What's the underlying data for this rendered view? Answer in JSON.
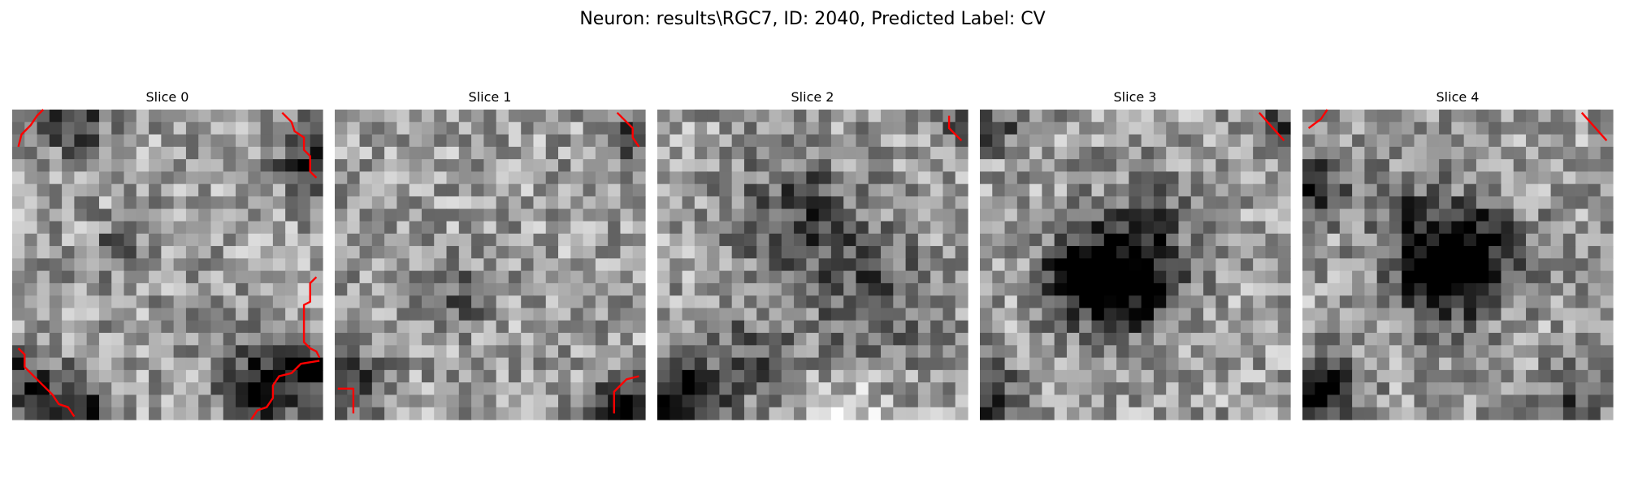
{
  "figure": {
    "title": "Neuron: results\\RGC7, ID: 2040, Predicted Label: CV"
  },
  "chart_data": {
    "type": "heatmap",
    "colormap": "gray",
    "contour_color": "#ff0000",
    "grid_size": [
      25,
      25
    ],
    "panels": [
      {
        "title": "Slice 0",
        "seed": 11,
        "blobs": [
          {
            "cx": 0.22,
            "cy": 0.96,
            "r": 0.07,
            "amp": -0.55
          },
          {
            "cx": 0.8,
            "cy": 0.9,
            "r": 0.09,
            "amp": -0.6
          },
          {
            "cx": 0.96,
            "cy": 0.84,
            "r": 0.06,
            "amp": -0.55
          },
          {
            "cx": 0.02,
            "cy": 0.88,
            "r": 0.09,
            "amp": -0.45
          },
          {
            "cx": 0.2,
            "cy": 0.04,
            "r": 0.07,
            "amp": -0.45
          },
          {
            "cx": 0.97,
            "cy": 0.16,
            "r": 0.08,
            "amp": -0.45
          },
          {
            "cx": 0.35,
            "cy": 0.45,
            "r": 0.06,
            "amp": -0.3
          }
        ]
      },
      {
        "title": "Slice 1",
        "seed": 23,
        "blobs": [
          {
            "cx": 0.03,
            "cy": 0.88,
            "r": 0.09,
            "amp": -0.45
          },
          {
            "cx": 0.92,
            "cy": 0.96,
            "r": 0.07,
            "amp": -0.6
          },
          {
            "cx": 0.97,
            "cy": 0.08,
            "r": 0.06,
            "amp": -0.4
          },
          {
            "cx": 0.4,
            "cy": 0.6,
            "r": 0.07,
            "amp": -0.25
          }
        ]
      },
      {
        "title": "Slice 2",
        "seed": 37,
        "blobs": [
          {
            "cx": 0.05,
            "cy": 0.95,
            "r": 0.1,
            "amp": -0.7
          },
          {
            "cx": 0.45,
            "cy": 0.35,
            "r": 0.14,
            "amp": -0.35
          },
          {
            "cx": 0.7,
            "cy": 0.6,
            "r": 0.14,
            "amp": -0.3
          },
          {
            "cx": 0.3,
            "cy": 0.8,
            "r": 0.1,
            "amp": -0.25
          },
          {
            "cx": 0.97,
            "cy": 0.05,
            "r": 0.05,
            "amp": -0.4
          },
          {
            "cx": 0.6,
            "cy": 0.98,
            "r": 0.08,
            "amp": 0.25
          }
        ]
      },
      {
        "title": "Slice 3",
        "seed": 41,
        "blobs": [
          {
            "cx": 0.45,
            "cy": 0.55,
            "r": 0.12,
            "amp": -0.75
          },
          {
            "cx": 0.3,
            "cy": 0.53,
            "r": 0.08,
            "amp": -0.45
          },
          {
            "cx": 0.02,
            "cy": 0.92,
            "r": 0.08,
            "amp": -0.45
          },
          {
            "cx": 0.05,
            "cy": 0.05,
            "r": 0.06,
            "amp": -0.35
          },
          {
            "cx": 0.95,
            "cy": 0.05,
            "r": 0.06,
            "amp": -0.35
          },
          {
            "cx": 0.55,
            "cy": 0.35,
            "r": 0.12,
            "amp": -0.2
          }
        ]
      },
      {
        "title": "Slice 4",
        "seed": 53,
        "blobs": [
          {
            "cx": 0.45,
            "cy": 0.52,
            "r": 0.11,
            "amp": -0.7
          },
          {
            "cx": 0.55,
            "cy": 0.45,
            "r": 0.12,
            "amp": -0.4
          },
          {
            "cx": 0.05,
            "cy": 0.92,
            "r": 0.09,
            "amp": -0.6
          },
          {
            "cx": 0.02,
            "cy": 0.25,
            "r": 0.08,
            "amp": -0.55
          },
          {
            "cx": 0.3,
            "cy": 0.3,
            "r": 0.08,
            "amp": -0.25
          },
          {
            "cx": 0.85,
            "cy": 0.95,
            "r": 0.08,
            "amp": -0.3
          }
        ]
      }
    ]
  }
}
